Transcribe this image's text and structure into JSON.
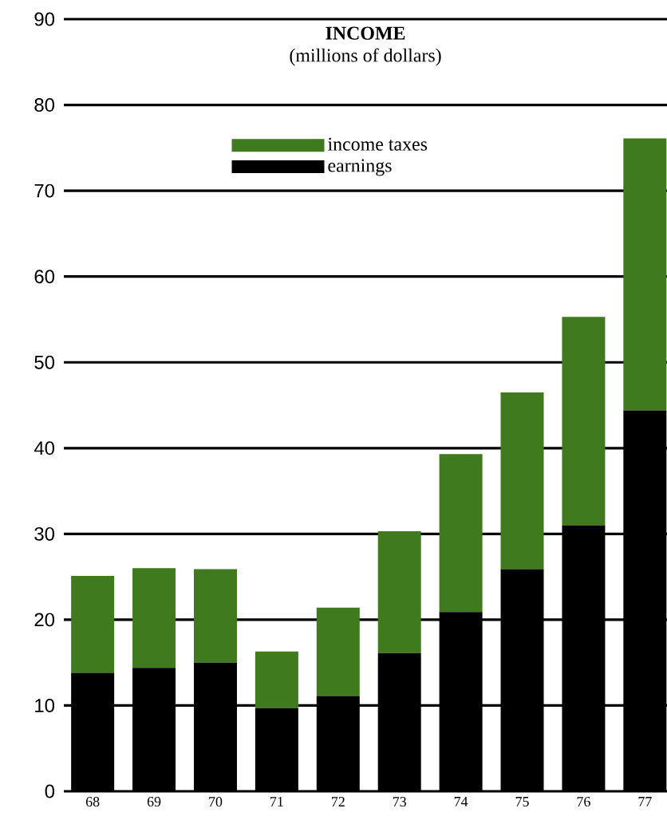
{
  "chart_data": {
    "type": "bar",
    "title": "INCOME",
    "subtitle": "(millions of dollars)",
    "categories": [
      "68",
      "69",
      "70",
      "71",
      "72",
      "73",
      "74",
      "75",
      "76",
      "77"
    ],
    "series": [
      {
        "name": "earnings",
        "color": "#000000",
        "values": [
          13.8,
          14.4,
          15.0,
          9.7,
          11.1,
          16.1,
          20.9,
          25.9,
          31.0,
          44.4
        ]
      },
      {
        "name": "income taxes",
        "color": "#3f7a1e",
        "values": [
          11.3,
          11.6,
          10.9,
          6.6,
          10.3,
          14.2,
          18.4,
          20.6,
          24.3,
          31.7
        ]
      }
    ],
    "stacked": true,
    "ylim": [
      0,
      90
    ],
    "yticks": [
      0,
      10,
      20,
      30,
      40,
      50,
      60,
      70,
      80,
      90
    ],
    "grid": "y",
    "legend": "top"
  }
}
